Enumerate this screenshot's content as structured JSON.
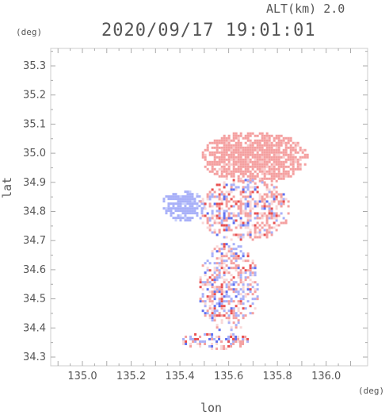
{
  "header": {
    "altitude_label": "ALT(km) 2.0",
    "timestamp": "2020/09/17 19:01:01"
  },
  "axes": {
    "y_unit": "(deg)",
    "x_unit": "(deg)",
    "y_label": "lat",
    "x_label": "lon"
  },
  "chart_data": {
    "type": "heatmap",
    "x_range": [
      134.87,
      136.17
    ],
    "y_range": [
      34.27,
      35.36
    ],
    "x_ticks": [
      "135.0",
      "135.2",
      "135.4",
      "135.6",
      "135.8",
      "136.0"
    ],
    "x_tick_values": [
      135.0,
      135.2,
      135.4,
      135.6,
      135.8,
      136.0
    ],
    "y_ticks": [
      "35.3",
      "35.2",
      "35.1",
      "35.0",
      "34.9",
      "34.8",
      "34.7",
      "34.6",
      "34.5",
      "34.4",
      "34.3"
    ],
    "y_tick_values": [
      35.3,
      35.2,
      35.1,
      35.0,
      34.9,
      34.8,
      34.7,
      34.6,
      34.5,
      34.4,
      34.3
    ],
    "colors": {
      "positive": "#f4a0a0",
      "negative": "#a8b0f8",
      "strong_positive": "#e85050",
      "strong_negative": "#6070f0"
    },
    "regions": [
      {
        "label": "northern area",
        "polarity": "positive",
        "lon": [
          135.48,
          135.92
        ],
        "lat": [
          34.9,
          35.08
        ]
      },
      {
        "label": "western area",
        "polarity": "negative",
        "lon": [
          135.32,
          135.5
        ],
        "lat": [
          34.77,
          34.88
        ]
      },
      {
        "label": "central mixed area",
        "polarity": "mixed",
        "lon": [
          135.47,
          135.85
        ],
        "lat": [
          34.7,
          34.92
        ]
      },
      {
        "label": "southern mixed area",
        "polarity": "mixed",
        "lon": [
          135.47,
          135.72
        ],
        "lat": [
          34.39,
          34.7
        ]
      },
      {
        "label": "southern fringe",
        "polarity": "mixed",
        "lon": [
          135.4,
          135.68
        ],
        "lat": [
          34.33,
          34.39
        ]
      }
    ]
  }
}
